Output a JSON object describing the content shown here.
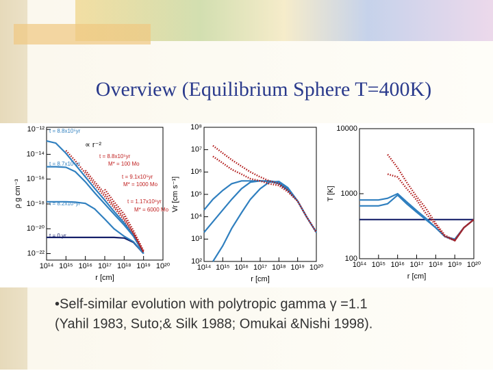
{
  "slide": {
    "title": "Overview (Equilibrium Sphere T=400K)",
    "bullet": [
      "•Self-similar evolution with polytropic gamma γ =1.1",
      "(Yahil 1983, Suto;& Silk 1988; Omukai &Nishi 1998)."
    ]
  },
  "chart_data": [
    {
      "type": "line",
      "xlog": true,
      "ylog": true,
      "xlabel": "r  [cm]",
      "ylabel": "ρ  g cm⁻³",
      "x": [
        100000000000000.0,
        300000000000000.0,
        1000000000000000.0,
        3000000000000000.0,
        1e+16,
        3e+16,
        1e+17,
        3e+17,
        1e+18,
        3e+18,
        1e+19,
        3e+19,
        1e+20
      ],
      "xlim": [
        100000000000000.0,
        1e+20
      ],
      "ylim": [
        3e-23,
        1.5e-12
      ],
      "xticks": [
        {
          "value": 100000000000000.0,
          "label": "10¹⁴"
        },
        {
          "value": 1000000000000000.0,
          "label": "10¹⁵"
        },
        {
          "value": 1e+16,
          "label": "10¹⁶"
        },
        {
          "value": 1e+17,
          "label": "10¹⁷"
        },
        {
          "value": 1e+18,
          "label": "10¹⁸"
        },
        {
          "value": 1e+19,
          "label": "10¹⁹"
        },
        {
          "value": 1e+20,
          "label": "10²⁰"
        }
      ],
      "yticks": [
        {
          "value": 1e-12,
          "label": "10⁻¹²"
        },
        {
          "value": 1e-14,
          "label": "10⁻¹⁴"
        },
        {
          "value": 1e-16,
          "label": "10⁻¹⁶"
        },
        {
          "value": 1e-18,
          "label": "10⁻¹⁸"
        },
        {
          "value": 1e-20,
          "label": "10⁻²⁰"
        },
        {
          "value": 1e-22,
          "label": "10⁻²²"
        }
      ],
      "series": [
        {
          "color": "#16206a",
          "linestyle": "solid",
          "values": [
            2e-21,
            2e-21,
            2e-21,
            2e-21,
            2e-21,
            2e-21,
            2e-21,
            2e-21,
            1.8e-21,
            8e-22,
            1e-22,
            null,
            null
          ]
        },
        {
          "color": "#2f7fbf",
          "linestyle": "solid",
          "values": [
            1.5e-18,
            1.5e-18,
            1.5e-18,
            1.4e-18,
            1.1e-18,
            4e-19,
            6e-20,
            1e-20,
            2.5e-21,
            9e-22,
            1e-22,
            null,
            null
          ]
        },
        {
          "color": "#2f7fbf",
          "linestyle": "solid",
          "values": [
            1e-15,
            1e-15,
            9e-16,
            4e-16,
            6e-17,
            8e-18,
            1e-18,
            1.5e-19,
            2e-20,
            2.5e-21,
            1e-22,
            null,
            null
          ]
        },
        {
          "color": "#2f7fbf",
          "linestyle": "solid",
          "values": [
            1.2e-13,
            8e-14,
            1.2e-14,
            1.5e-15,
            1.5e-16,
            1.8e-17,
            2e-18,
            2.5e-19,
            3e-20,
            3e-21,
            1e-22,
            null,
            null
          ]
        },
        {
          "color": "#b01818",
          "linestyle": "dotted",
          "values": [
            null,
            null,
            2e-14,
            3e-15,
            3e-16,
            3.5e-17,
            4e-18,
            5e-19,
            5e-20,
            4e-21,
            1.2e-22,
            null,
            null
          ]
        },
        {
          "color": "#b01818",
          "linestyle": "dotted",
          "values": [
            null,
            null,
            null,
            null,
            5e-16,
            6e-17,
            7e-18,
            8e-19,
            8e-20,
            5e-21,
            1.4e-22,
            null,
            null
          ]
        },
        {
          "color": "#b01818",
          "linestyle": "dotted",
          "values": [
            null,
            null,
            null,
            null,
            null,
            null,
            1.5e-17,
            1.5e-18,
            1.5e-19,
            7e-21,
            1.6e-22,
            null,
            null
          ]
        }
      ],
      "annotations": [
        {
          "text": "t = 8.8x10⁵yr",
          "color": "#2f7fbf"
        },
        {
          "text": "t = 8.7x10⁵yr",
          "color": "#2f7fbf"
        },
        {
          "text": "t = 8.2x10⁵yr",
          "color": "#2f7fbf"
        },
        {
          "text": "t = 0 yr",
          "color": "#16206a"
        },
        {
          "text": "∝ r⁻²",
          "color": "#000000"
        },
        {
          "text": "t = 8.8x10⁵yr",
          "color": "#c02020"
        },
        {
          "text": "M* = 100 Mo",
          "color": "#c02020"
        },
        {
          "text": "t = 9.1x10⁵yr",
          "color": "#c02020"
        },
        {
          "text": "M* = 1000 Mo",
          "color": "#c02020"
        },
        {
          "text": "t = 1.17x10⁶yr",
          "color": "#c02020"
        },
        {
          "text": "M* = 6000 Mo",
          "color": "#c02020"
        }
      ]
    },
    {
      "type": "line",
      "xlog": true,
      "ylog": true,
      "xlabel": "r  [cm]",
      "ylabel": "Vr  [cm s⁻¹]",
      "x": [
        100000000000000.0,
        300000000000000.0,
        1000000000000000.0,
        3000000000000000.0,
        1e+16,
        3e+16,
        1e+17,
        3e+17,
        1e+18,
        3e+18,
        1e+19,
        3e+19,
        1e+20
      ],
      "xlim": [
        100000000000000.0,
        1e+20
      ],
      "ylim": [
        100,
        100000000.0
      ],
      "xticks": [
        {
          "value": 100000000000000.0,
          "label": "10¹⁴"
        },
        {
          "value": 1000000000000000.0,
          "label": "10¹⁵"
        },
        {
          "value": 1e+16,
          "label": "10¹⁶"
        },
        {
          "value": 1e+17,
          "label": "10¹⁷"
        },
        {
          "value": 1e+18,
          "label": "10¹⁸"
        },
        {
          "value": 1e+19,
          "label": "10¹⁹"
        },
        {
          "value": 1e+20,
          "label": "10²⁰"
        }
      ],
      "yticks": [
        {
          "value": 100,
          "label": "10²"
        },
        {
          "value": 1000,
          "label": "10³"
        },
        {
          "value": 10000,
          "label": "10⁴"
        },
        {
          "value": 100000,
          "label": "10⁵"
        },
        {
          "value": 1000000,
          "label": "10⁶"
        },
        {
          "value": 10000000,
          "label": "10⁷"
        },
        {
          "value": 100000000,
          "label": "10⁸"
        }
      ],
      "series": [
        {
          "color": "#2f7fbf",
          "linestyle": "solid",
          "values": [
            20000,
            60000,
            150000,
            300000,
            400000,
            400000,
            400000,
            380000,
            300000,
            150000,
            50000,
            10000,
            2000
          ]
        },
        {
          "color": "#2f7fbf",
          "linestyle": "solid",
          "values": [
            2000,
            6000,
            20000,
            60000,
            180000,
            350000,
            400000,
            400000,
            350000,
            180000,
            50000,
            10000,
            2000
          ]
        },
        {
          "color": "#2f7fbf",
          "linestyle": "solid",
          "values": [
            null,
            100,
            500,
            3000,
            15000,
            60000,
            180000,
            350000,
            380000,
            200000,
            50000,
            10000,
            2000
          ]
        },
        {
          "color": "#b01818",
          "linestyle": "dotted",
          "values": [
            null,
            15000000,
            7000000,
            3500000,
            1800000,
            1000000,
            600000,
            400000,
            300000,
            150000,
            50000,
            10000,
            2000
          ]
        },
        {
          "color": "#b01818",
          "linestyle": "dotted",
          "values": [
            null,
            5000000,
            2500000,
            1300000,
            800000,
            500000,
            400000,
            300000,
            250000,
            130000,
            50000,
            10000,
            2000
          ]
        }
      ]
    },
    {
      "type": "line",
      "xlog": true,
      "ylog": true,
      "xlabel": "r  [cm]",
      "ylabel": "T [K]",
      "x": [
        100000000000000.0,
        300000000000000.0,
        1000000000000000.0,
        3000000000000000.0,
        1e+16,
        3e+16,
        1e+17,
        3e+17,
        1e+18,
        3e+18,
        1e+19,
        3e+19,
        1e+20
      ],
      "xlim": [
        100000000000000.0,
        1e+20
      ],
      "ylim": [
        100,
        10000
      ],
      "xticks": [
        {
          "value": 100000000000000.0,
          "label": "10¹⁴"
        },
        {
          "value": 1000000000000000.0,
          "label": "10¹⁵"
        },
        {
          "value": 1e+16,
          "label": "10¹⁶"
        },
        {
          "value": 1e+17,
          "label": "10¹⁷"
        },
        {
          "value": 1e+18,
          "label": "10¹⁸"
        },
        {
          "value": 1e+19,
          "label": "10¹⁹"
        },
        {
          "value": 1e+20,
          "label": "10²⁰"
        }
      ],
      "yticks": [
        100,
        1000,
        10000
      ],
      "series": [
        {
          "color": "#16206a",
          "linestyle": "solid",
          "values": [
            400,
            400,
            400,
            400,
            400,
            400,
            400,
            400,
            400,
            400,
            400,
            400,
            400
          ]
        },
        {
          "color": "#2f7fbf",
          "linestyle": "solid",
          "values": [
            800,
            800,
            800,
            850,
            1000,
            750,
            550,
            420,
            300,
            220,
            200,
            300,
            400
          ]
        },
        {
          "color": "#2f7fbf",
          "linestyle": "solid",
          "values": [
            650,
            650,
            650,
            700,
            950,
            700,
            520,
            400,
            300,
            220,
            190,
            300,
            400
          ]
        },
        {
          "color": "#b01818",
          "linestyle": "dotted",
          "values": [
            null,
            null,
            null,
            4000,
            2500,
            1500,
            900,
            600,
            350,
            230,
            190,
            300,
            400
          ]
        },
        {
          "color": "#b01818",
          "linestyle": "dotted",
          "values": [
            null,
            null,
            null,
            2000,
            1800,
            1200,
            800,
            500,
            330,
            220,
            190,
            300,
            400
          ]
        }
      ]
    }
  ]
}
